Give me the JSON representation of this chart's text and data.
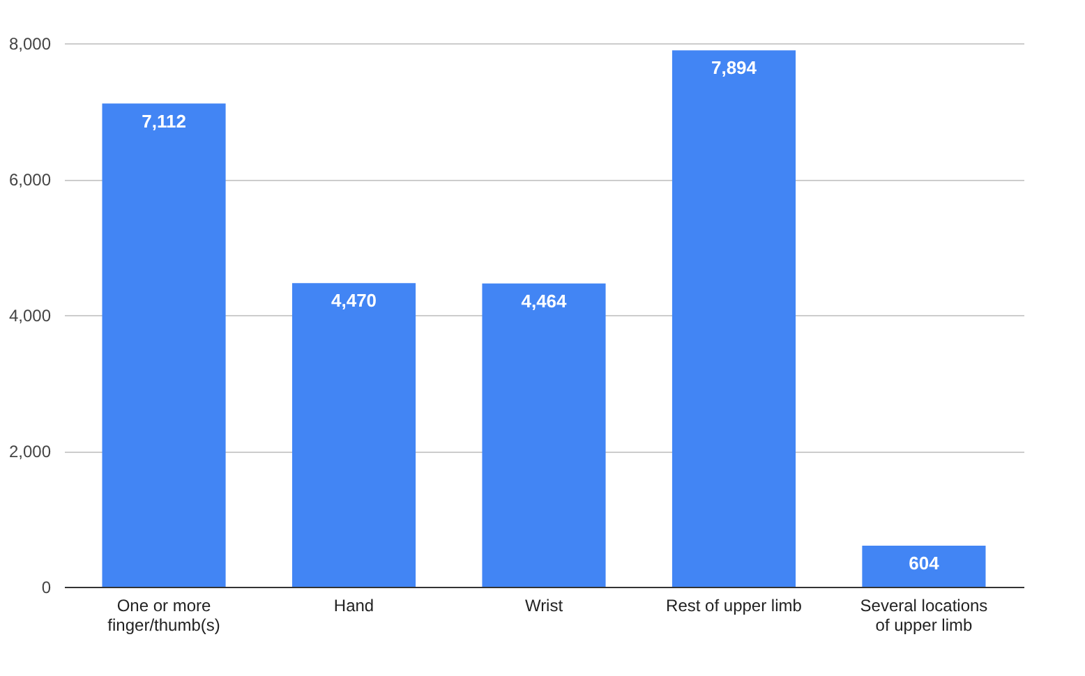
{
  "chart_data": {
    "type": "bar",
    "categories": [
      "One or more finger/thumb(s)",
      "Hand",
      "Wrist",
      "Rest of upper limb",
      "Several locations of upper limb"
    ],
    "values": [
      7112,
      4470,
      4464,
      7894,
      604
    ],
    "value_labels": [
      "7,112",
      "4,470",
      "4,464",
      "7,894",
      "604"
    ],
    "color": "#4285f4",
    "ylim": [
      0,
      8000
    ],
    "yticks": [
      0,
      {
        "value": 2000,
        "label": "2,000"
      },
      {
        "value": 4000,
        "label": "4,000"
      },
      {
        "value": 6000,
        "label": "6,000"
      },
      {
        "value": 8000,
        "label": "8,000"
      }
    ],
    "grid": "y"
  }
}
